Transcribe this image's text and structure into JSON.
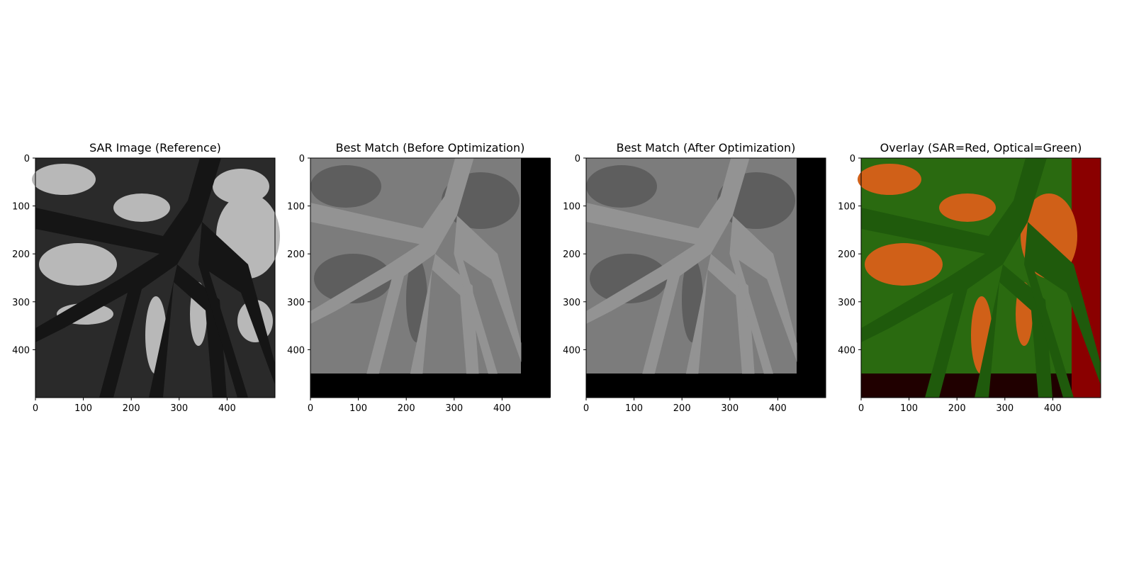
{
  "chart_data": [
    {
      "type": "image",
      "title": "SAR Image (Reference)",
      "xlim": [
        0,
        500
      ],
      "ylim": [
        500,
        0
      ],
      "xticks": [
        0,
        100,
        200,
        300,
        400
      ],
      "yticks": [
        0,
        100,
        200,
        300,
        400
      ]
    },
    {
      "type": "image",
      "title": "Best Match (Before Optimization)",
      "xlim": [
        0,
        500
      ],
      "ylim": [
        500,
        0
      ],
      "xticks": [
        0,
        100,
        200,
        300,
        400
      ],
      "yticks": [
        0,
        100,
        200,
        300,
        400
      ]
    },
    {
      "type": "image",
      "title": "Best Match (After Optimization)",
      "xlim": [
        0,
        500
      ],
      "ylim": [
        500,
        0
      ],
      "xticks": [
        0,
        100,
        200,
        300,
        400
      ],
      "yticks": [
        0,
        100,
        200,
        300,
        400
      ]
    },
    {
      "type": "image",
      "title": "Overlay (SAR=Red, Optical=Green)",
      "xlim": [
        0,
        500
      ],
      "ylim": [
        500,
        0
      ],
      "xticks": [
        0,
        100,
        200,
        300,
        400
      ],
      "yticks": [
        0,
        100,
        200,
        300,
        400
      ]
    }
  ]
}
